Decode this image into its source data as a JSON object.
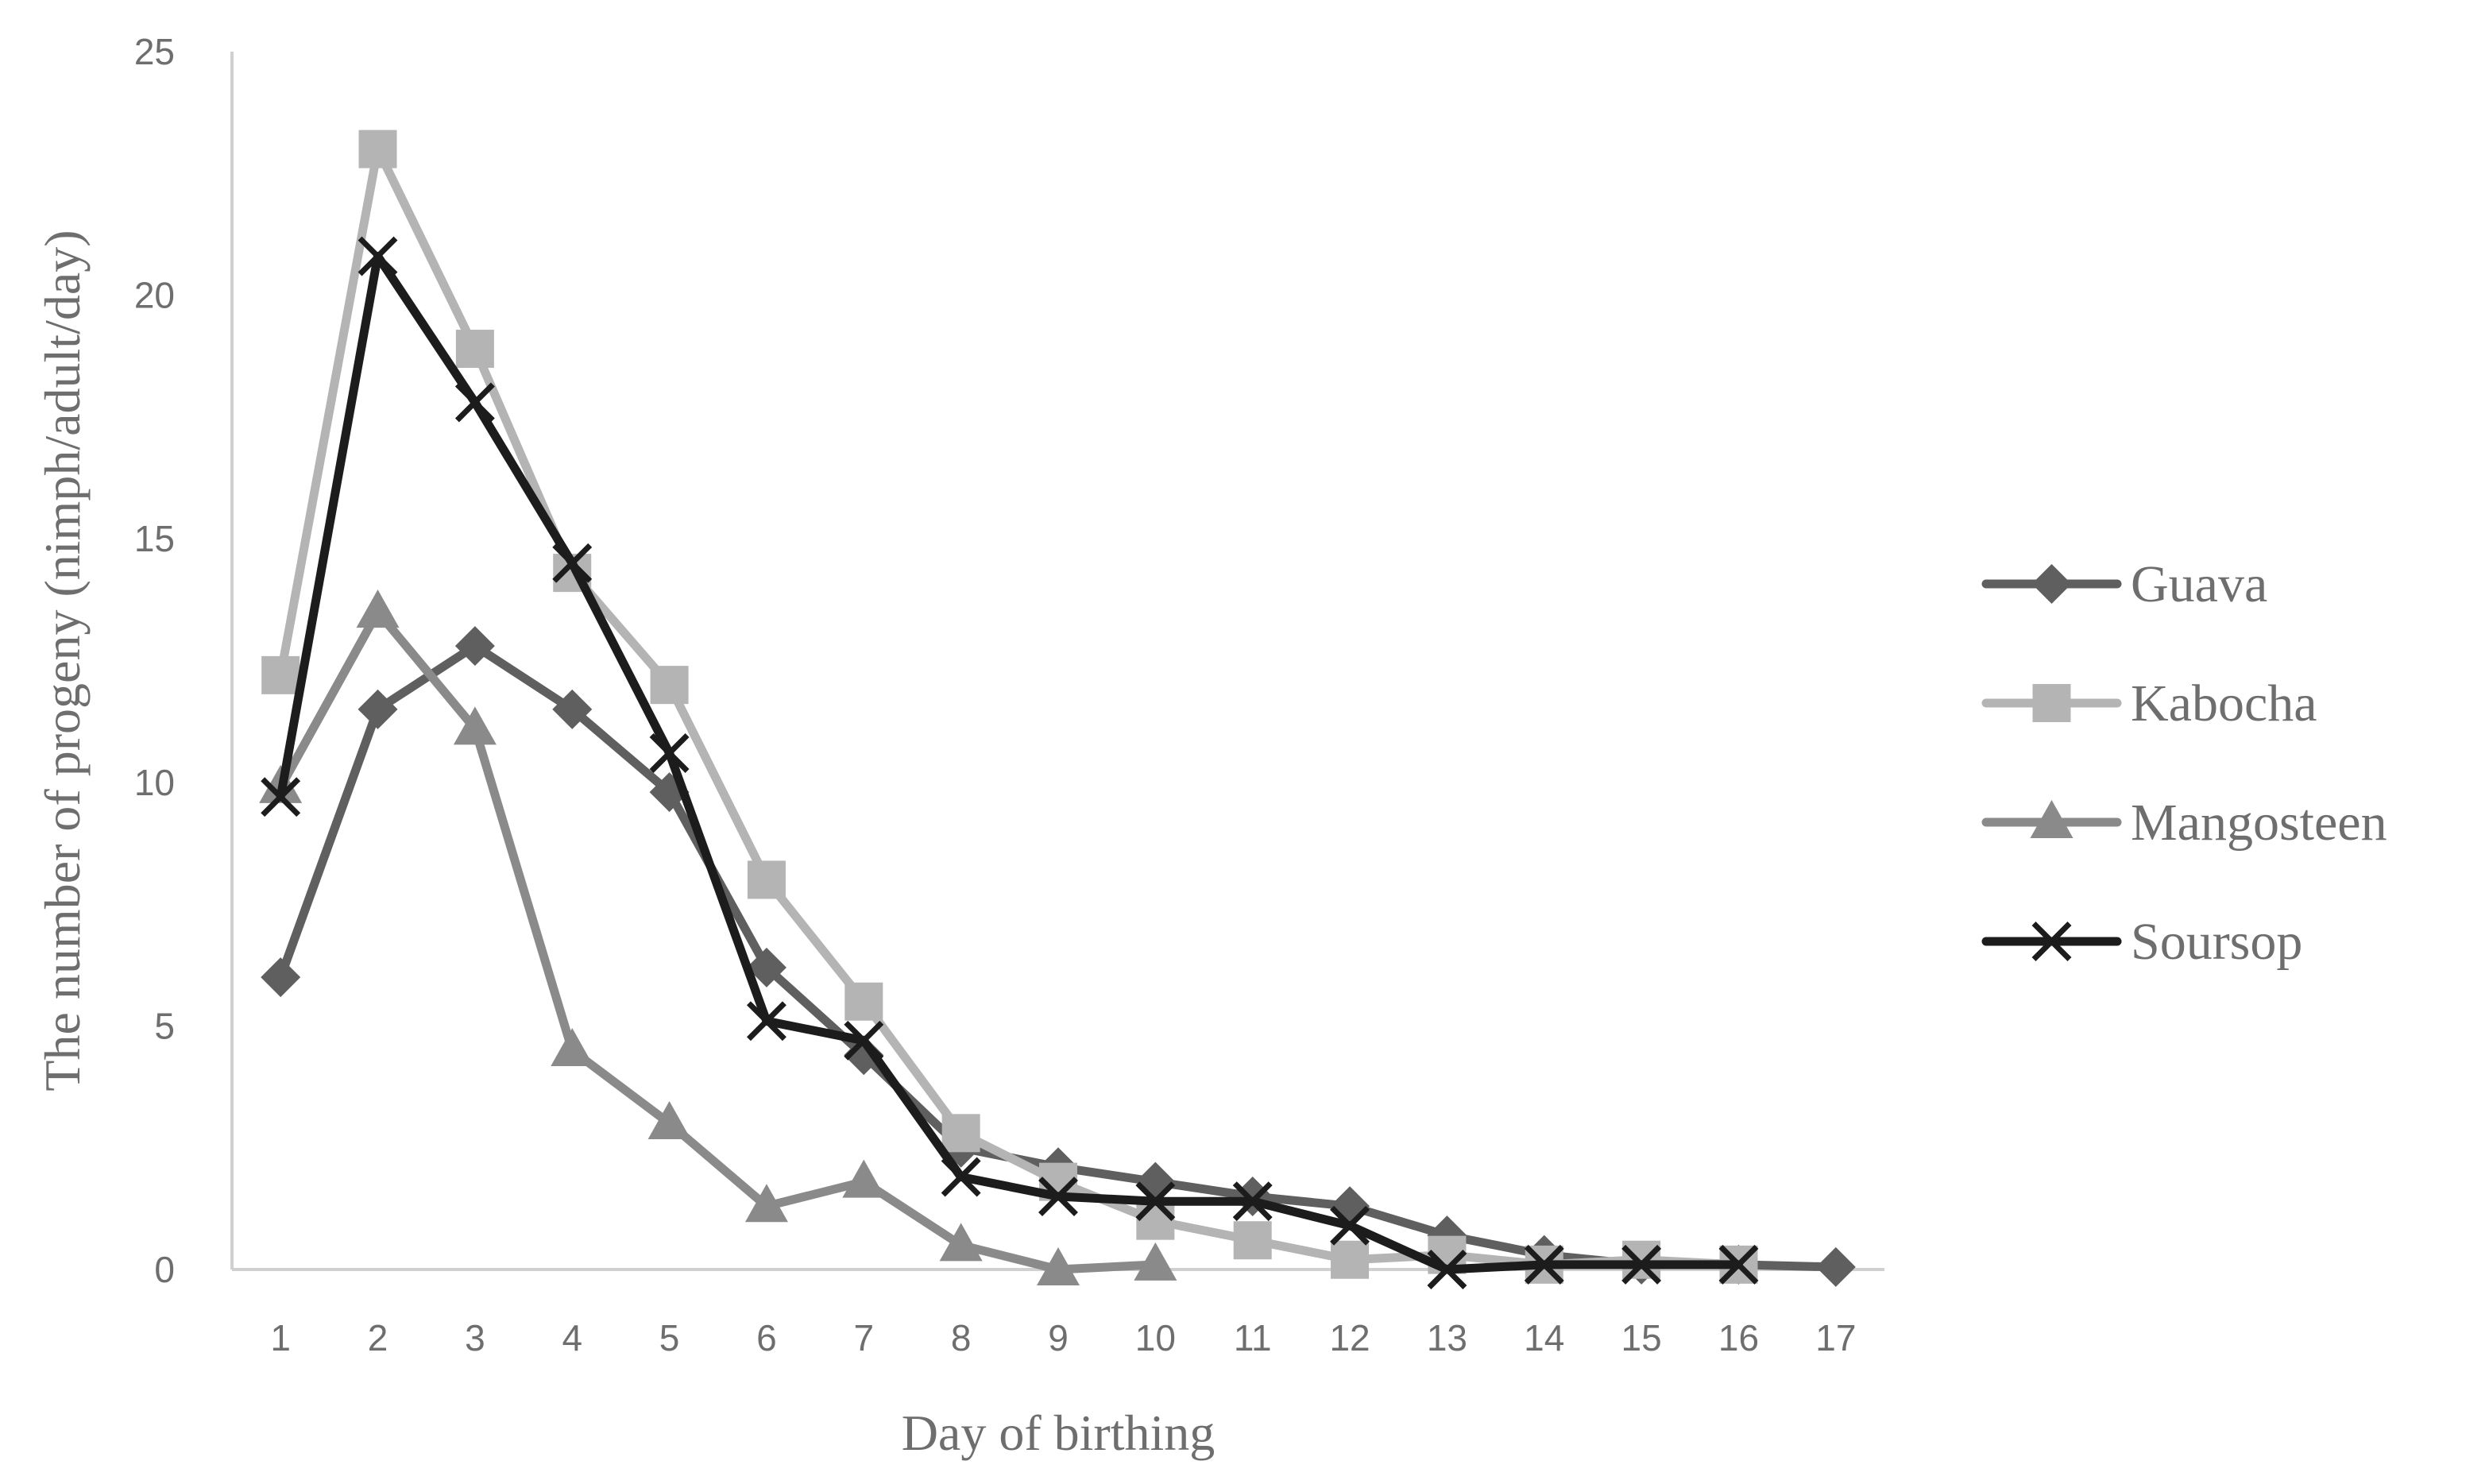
{
  "chart_data": {
    "type": "line",
    "title": "",
    "xlabel": "Day of birthing",
    "ylabel": "The number of progeny  (nimph/adult/day)",
    "x": [
      1,
      2,
      3,
      4,
      5,
      6,
      7,
      8,
      9,
      10,
      11,
      12,
      13,
      14,
      15,
      16,
      17
    ],
    "xticks": [
      "1",
      "2",
      "3",
      "4",
      "5",
      "6",
      "7",
      "8",
      "9",
      "10",
      "11",
      "12",
      "13",
      "14",
      "15",
      "16",
      "17"
    ],
    "ylim": [
      0,
      25
    ],
    "yticks": [
      0,
      5,
      10,
      15,
      20,
      25
    ],
    "grid": false,
    "legend_position": "right",
    "series": [
      {
        "name": "Guava",
        "marker": "diamond",
        "color": "#5f5f5f",
        "values": [
          6.0,
          11.5,
          12.8,
          11.5,
          9.8,
          6.2,
          4.4,
          2.5,
          2.1,
          1.8,
          1.5,
          1.3,
          0.7,
          0.3,
          0.1,
          0.1,
          0.05
        ]
      },
      {
        "name": "Kabocha",
        "marker": "square",
        "color": "#b4b4b4",
        "values": [
          12.2,
          23.0,
          18.9,
          14.3,
          12.0,
          8.0,
          5.5,
          2.8,
          1.8,
          1.0,
          0.6,
          0.2,
          0.3,
          0.1,
          0.2,
          0.1,
          null
        ]
      },
      {
        "name": "Mangosteen",
        "marker": "triangle",
        "color": "#8a8a8a",
        "values": [
          9.9,
          13.5,
          11.1,
          4.5,
          3.0,
          1.3,
          1.8,
          0.5,
          0.0,
          0.1,
          null,
          null,
          null,
          null,
          null,
          null,
          null
        ]
      },
      {
        "name": "Soursop",
        "marker": "x",
        "color": "#1c1c1c",
        "values": [
          9.7,
          20.8,
          17.8,
          14.5,
          10.6,
          5.1,
          4.7,
          1.9,
          1.5,
          1.4,
          1.4,
          0.9,
          0.0,
          0.1,
          0.1,
          0.1,
          null
        ]
      }
    ]
  }
}
